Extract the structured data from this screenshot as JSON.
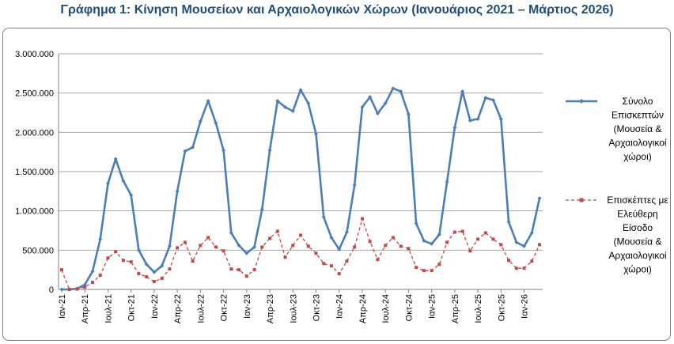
{
  "chart_data": {
    "type": "line",
    "title": "Γράφημα 1: Κίνηση Μουσείων και Αρχαιολογικών Χώρων (Ιανουάριος 2021 – Μάρτιος 2026)",
    "xlabel": "",
    "ylabel": "",
    "ylim": [
      0,
      3000000
    ],
    "yticks": [
      0,
      500000,
      1000000,
      1500000,
      2000000,
      2500000,
      3000000
    ],
    "ytick_labels": [
      "0",
      "500.000",
      "1.000.000",
      "1.500.000",
      "2.000.000",
      "2.500.000",
      "3.000.000"
    ],
    "grid": true,
    "legend_position": "right",
    "x_tick_labels": [
      {
        "index": 0,
        "label": "Ιαν-21"
      },
      {
        "index": 3,
        "label": "Απρ-21"
      },
      {
        "index": 6,
        "label": "Ιουλ-21"
      },
      {
        "index": 9,
        "label": "Οκτ-21"
      },
      {
        "index": 12,
        "label": "Ιαν-22"
      },
      {
        "index": 15,
        "label": "Απρ-22"
      },
      {
        "index": 18,
        "label": "Ιουλ-22"
      },
      {
        "index": 21,
        "label": "Οκτ-22"
      },
      {
        "index": 24,
        "label": "Ιαν-23"
      },
      {
        "index": 27,
        "label": "Απρ-23"
      },
      {
        "index": 30,
        "label": "Ιουλ-23"
      },
      {
        "index": 33,
        "label": "Οκτ-23"
      },
      {
        "index": 36,
        "label": "Ιαν-24"
      },
      {
        "index": 39,
        "label": "Απρ-24"
      },
      {
        "index": 42,
        "label": "Ιουλ-24"
      },
      {
        "index": 45,
        "label": "Οκτ-24"
      },
      {
        "index": 48,
        "label": "Ιαν-25"
      },
      {
        "index": 51,
        "label": "Απρ-25"
      },
      {
        "index": 54,
        "label": "Ιουλ-25"
      },
      {
        "index": 57,
        "label": "Οκτ-25"
      },
      {
        "index": 60,
        "label": "Ιαν-26"
      }
    ],
    "series": [
      {
        "name": "Σύνολο Επισκεπτών (Μουσεία & Αρχαιολογικοί χώροι)",
        "color": "#4a7ebb",
        "style": "solid",
        "marker": "diamond",
        "values": [
          0,
          0,
          10000,
          60000,
          230000,
          640000,
          1350000,
          1660000,
          1380000,
          1200000,
          500000,
          320000,
          220000,
          300000,
          550000,
          1250000,
          1760000,
          1810000,
          2140000,
          2400000,
          2120000,
          1770000,
          720000,
          560000,
          460000,
          540000,
          1020000,
          1770000,
          2400000,
          2320000,
          2270000,
          2540000,
          2370000,
          1980000,
          920000,
          660000,
          510000,
          730000,
          1330000,
          2320000,
          2450000,
          2240000,
          2370000,
          2560000,
          2520000,
          2230000,
          840000,
          620000,
          580000,
          700000,
          1370000,
          2060000,
          2520000,
          2150000,
          2170000,
          2440000,
          2410000,
          2170000,
          860000,
          600000,
          550000,
          720000,
          1160000
        ]
      },
      {
        "name": "Επισκέπτες με Ελεύθερη Είσοδο (Μουσεία & Αρχαιολογικοί χώροι)",
        "color": "#be4b48",
        "style": "dashed",
        "marker": "square",
        "values": [
          250000,
          0,
          5000,
          30000,
          90000,
          180000,
          400000,
          480000,
          370000,
          350000,
          200000,
          160000,
          100000,
          140000,
          260000,
          530000,
          600000,
          360000,
          560000,
          660000,
          540000,
          490000,
          260000,
          250000,
          170000,
          250000,
          540000,
          650000,
          740000,
          410000,
          560000,
          690000,
          550000,
          460000,
          330000,
          300000,
          200000,
          360000,
          540000,
          900000,
          610000,
          380000,
          560000,
          660000,
          550000,
          520000,
          280000,
          240000,
          240000,
          320000,
          600000,
          730000,
          740000,
          490000,
          640000,
          720000,
          640000,
          570000,
          370000,
          270000,
          270000,
          360000,
          570000
        ]
      }
    ]
  },
  "legend": [
    {
      "lines": [
        "Σύνολο",
        "Επισκεπτών",
        "(Μουσεία &",
        "Αρχαιολογικοί",
        "χώροι)"
      ]
    },
    {
      "lines": [
        "Επισκέπτες με",
        "Ελεύθερη",
        "Είσοδο",
        "(Μουσεία &",
        "Αρχαιολογικοί",
        "χώροι)"
      ]
    }
  ]
}
